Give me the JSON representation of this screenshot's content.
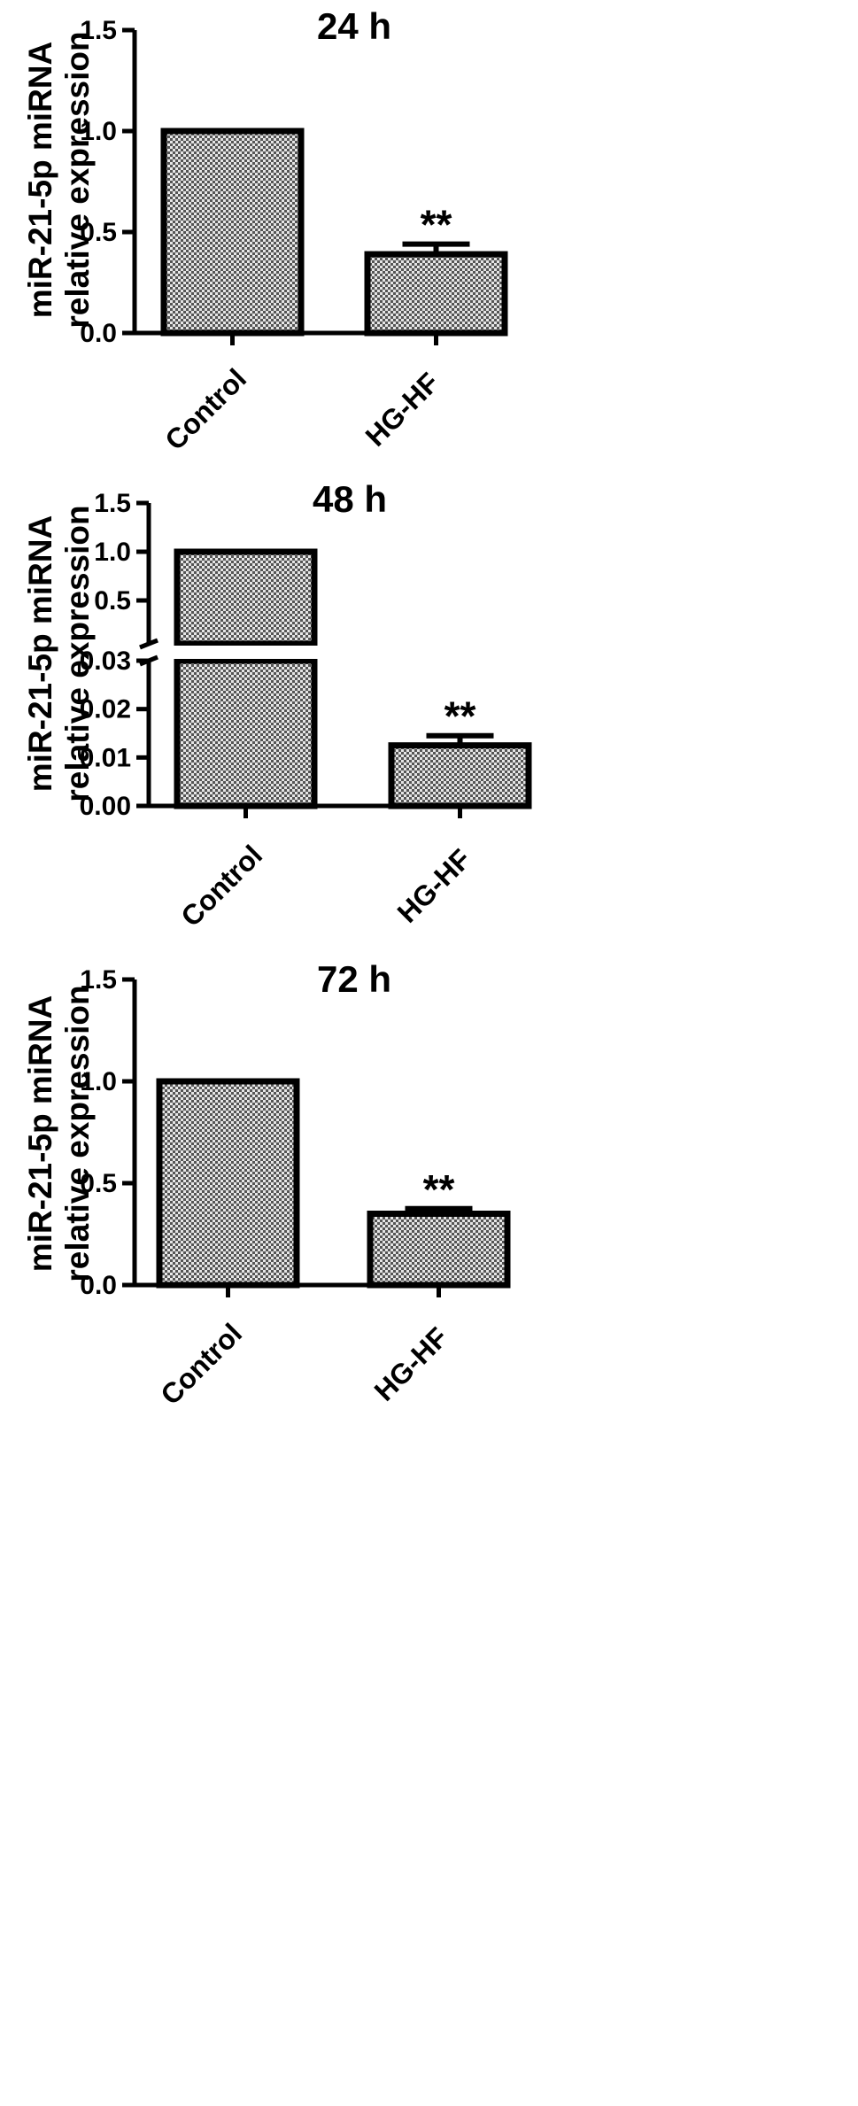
{
  "chart_data": [
    {
      "type": "bar",
      "title": "24 h",
      "ylabel": [
        "miR-21-5p miRNA",
        "relative expression"
      ],
      "categories": [
        "Control",
        "HG-HF"
      ],
      "values": [
        1.0,
        0.39
      ],
      "errors": [
        0,
        0.05
      ],
      "significance": [
        "",
        "**"
      ],
      "ylim": [
        0,
        1.5
      ],
      "yticks": [
        "0.0",
        "0.5",
        "1.0",
        "1.5"
      ],
      "axis_break": false
    },
    {
      "type": "bar",
      "title": "48 h",
      "ylabel": [
        "miR-21-5p miRNA",
        "relative expression"
      ],
      "categories": [
        "Control",
        "HG-HF"
      ],
      "values": [
        1.0,
        0.0125
      ],
      "errors": [
        0,
        0.002
      ],
      "significance": [
        "",
        "**"
      ],
      "ylim_lower": [
        0,
        0.03
      ],
      "ylim_upper": [
        0.3,
        1.5
      ],
      "yticks_lower": [
        "0.00",
        "0.01",
        "0.02",
        "0.03"
      ],
      "yticks_upper": [
        "0.5",
        "1.0",
        "1.5"
      ],
      "axis_break": true
    },
    {
      "type": "bar",
      "title": "72 h",
      "ylabel": [
        "miR-21-5p miRNA",
        "relative expression"
      ],
      "categories": [
        "Control",
        "HG-HF"
      ],
      "values": [
        1.0,
        0.35
      ],
      "errors": [
        0,
        0.025
      ],
      "significance": [
        "",
        "**"
      ],
      "ylim": [
        0,
        1.5
      ],
      "yticks": [
        "0.0",
        "0.5",
        "1.0",
        "1.5"
      ],
      "axis_break": false
    }
  ],
  "colors": {
    "bar_pattern_dark": "#555555",
    "bar_pattern_light": "#e6e6e6",
    "ink": "#000000"
  }
}
